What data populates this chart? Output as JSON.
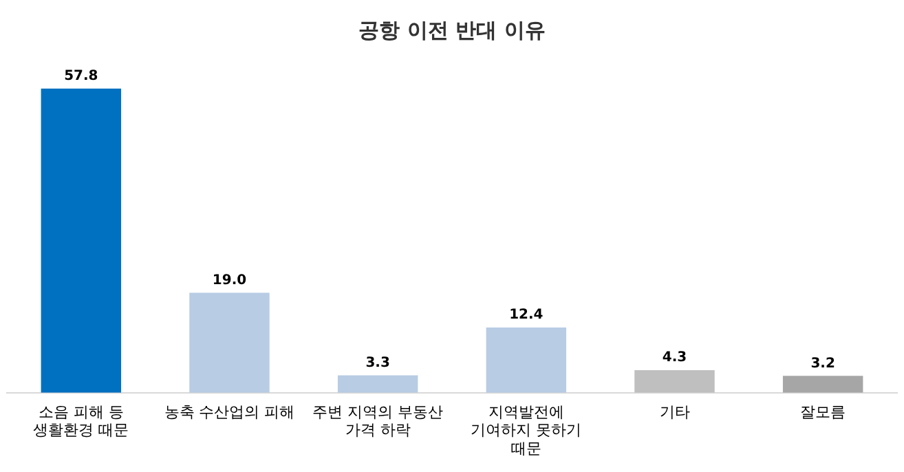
{
  "chart_data": {
    "type": "bar",
    "title": "공항 이전 반대 이유",
    "categories": [
      "소음 피해 등\n생활환경 때문",
      "농축 수산업의 피해",
      "주변 지역의 부동산\n가격 하락",
      "지역발전에\n기여하지 못하기\n때문",
      "기타",
      "잘모름"
    ],
    "values": [
      57.8,
      19.0,
      3.3,
      12.4,
      4.3,
      3.2
    ],
    "colors": [
      "#0070c0",
      "#b8cce4",
      "#b8cce4",
      "#b8cce4",
      "#bfbfbf",
      "#a6a6a6"
    ],
    "value_labels": [
      "57.8",
      "19.0",
      "3.3",
      "12.4",
      "4.3",
      "3.2"
    ],
    "grid": false,
    "legend": false
  }
}
